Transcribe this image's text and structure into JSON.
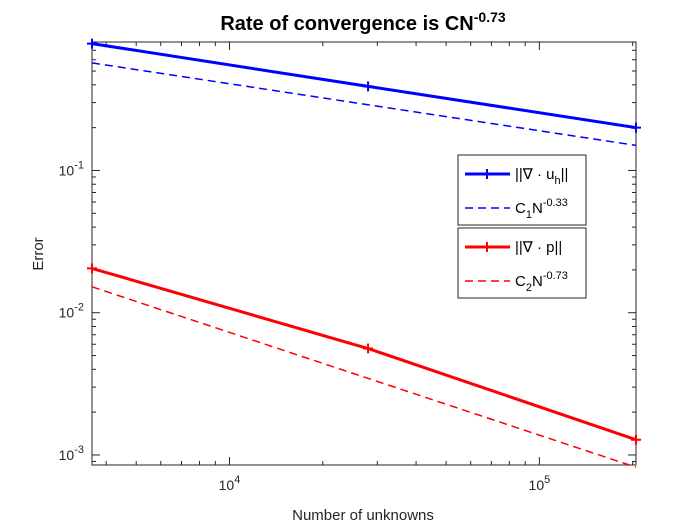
{
  "chart_data": {
    "type": "line",
    "title": "Rate of convergence is CN",
    "title_exponent": "-0.73",
    "xlabel": "Number of unknowns",
    "ylabel": "Error",
    "x_scale": "log",
    "y_scale": "log",
    "xlim": [
      3600,
      205000
    ],
    "ylim": [
      0.00085,
      0.8
    ],
    "x_ticks": [
      {
        "value": 10000,
        "base": "10",
        "exp": "4"
      },
      {
        "value": 100000,
        "base": "10",
        "exp": "5"
      }
    ],
    "y_ticks": [
      {
        "value": 0.1,
        "base": "10",
        "exp": "-1"
      },
      {
        "value": 0.01,
        "base": "10",
        "exp": "-2"
      },
      {
        "value": 0.001,
        "base": "10",
        "exp": "-3"
      }
    ],
    "grid": false,
    "legend_position": "right",
    "series": [
      {
        "name": "||∇ · u_h||",
        "legend": {
          "prefix": "||∇ · u",
          "sub": "h",
          "suffix": "||"
        },
        "color": "#0000ff",
        "style": "solid",
        "marker": "plus",
        "x": [
          3600,
          28000,
          205000
        ],
        "y": [
          0.78,
          0.39,
          0.2
        ]
      },
      {
        "name": "C_1N^-0.33",
        "legend": {
          "prefix": "C",
          "sub": "1",
          "mid": "N",
          "sup": "-0.33"
        },
        "color": "#0000ff",
        "style": "dashed",
        "marker": "none",
        "x": [
          3600,
          205000
        ],
        "y": [
          0.57,
          0.15
        ]
      },
      {
        "name": "||∇ · p||",
        "legend": {
          "prefix": "||∇ · p||"
        },
        "color": "#ff0000",
        "style": "solid",
        "marker": "plus",
        "x": [
          3600,
          28000,
          205000
        ],
        "y": [
          0.0205,
          0.0056,
          0.00128
        ]
      },
      {
        "name": "C_2N^-0.73",
        "legend": {
          "prefix": "C",
          "sub": "2",
          "mid": "N",
          "sup": "-0.73"
        },
        "color": "#ff0000",
        "style": "dashed",
        "marker": "none",
        "x": [
          3600,
          205000
        ],
        "y": [
          0.0152,
          0.00082
        ]
      }
    ]
  }
}
